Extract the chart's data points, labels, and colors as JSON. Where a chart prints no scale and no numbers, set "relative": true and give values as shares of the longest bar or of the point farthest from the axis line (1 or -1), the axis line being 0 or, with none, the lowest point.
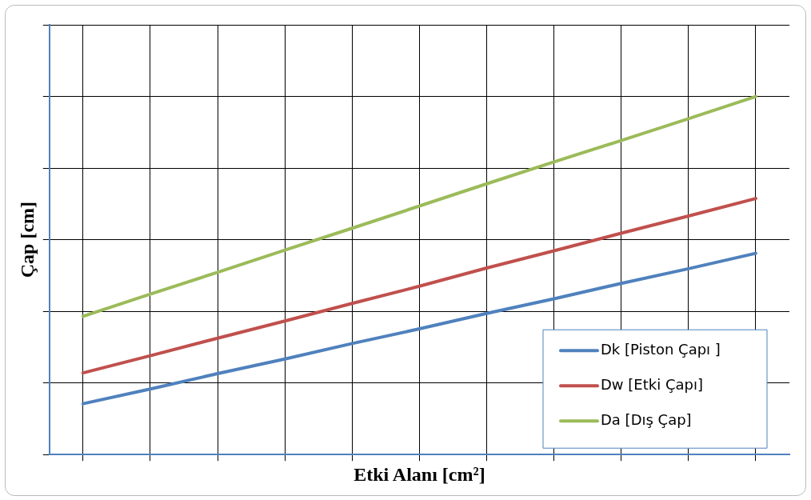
{
  "chart_data": {
    "type": "line",
    "xlabel": "Etki Alanı [cm²]",
    "ylabel": "Çap [cm]",
    "relative": true,
    "grid": true,
    "legend": "bottom right",
    "marker": "none",
    "line_style": "solid",
    "categories": [
      null,
      null,
      null,
      null,
      null,
      null,
      null,
      null,
      null,
      null,
      null
    ],
    "series": [
      {
        "name": "Dk [Piston Çapı ]",
        "color": "#4f81bd",
        "values": [
          0.142,
          0.183,
          0.226,
          0.267,
          0.31,
          0.351,
          0.394,
          0.435,
          0.478,
          0.519,
          0.562
        ]
      },
      {
        "name": "Dw [Etki Çapı]",
        "color": "#c0504d",
        "values": [
          0.228,
          0.276,
          0.325,
          0.373,
          0.422,
          0.47,
          0.521,
          0.569,
          0.618,
          0.666,
          0.715
        ]
      },
      {
        "name": "Da [Dış Çap]",
        "color": "#9bbb59",
        "values": [
          0.386,
          0.448,
          0.509,
          0.571,
          0.632,
          0.694,
          0.756,
          0.817,
          0.877,
          0.938,
          1
        ]
      }
    ]
  }
}
